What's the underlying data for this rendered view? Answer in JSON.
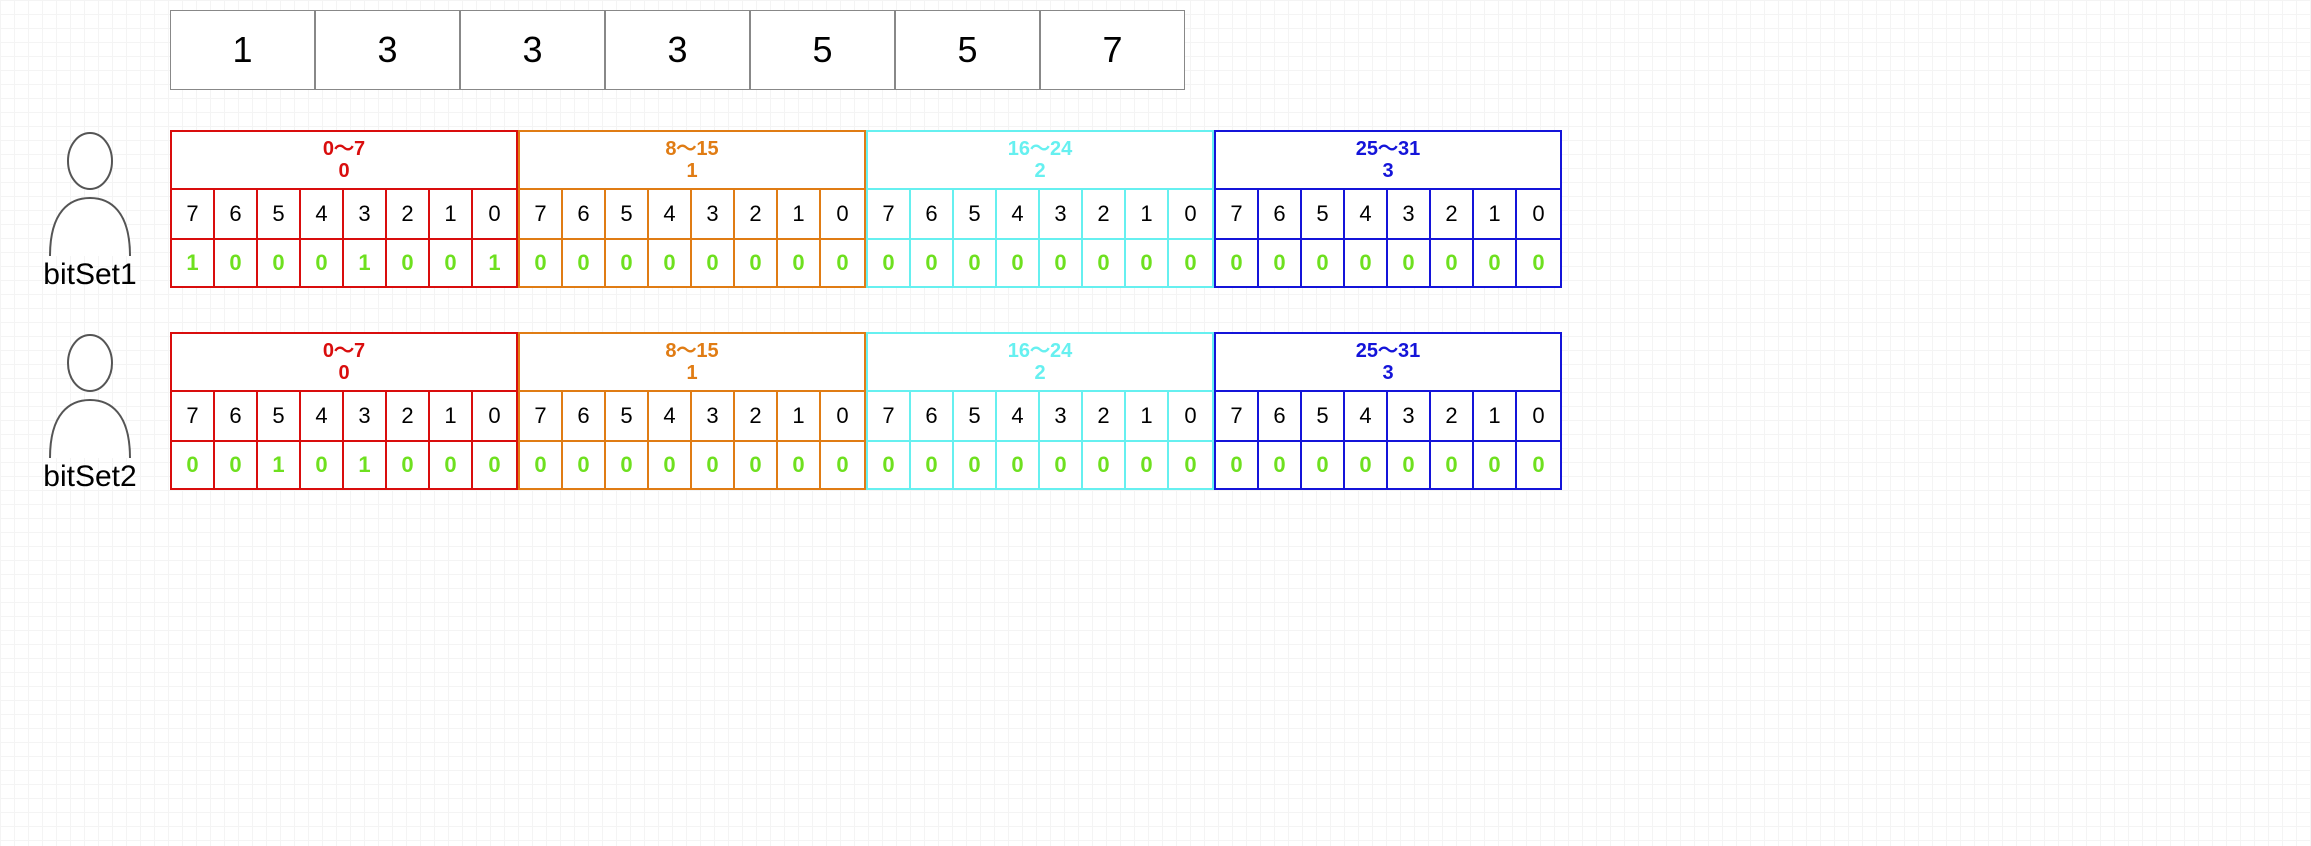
{
  "colors": {
    "value_color": "#6ee01f",
    "index_color": "#000000",
    "cell_bg": "#ffffff",
    "top_border": "#888888"
  },
  "top_numbers": [
    "1",
    "3",
    "3",
    "3",
    "5",
    "5",
    "7"
  ],
  "groups": [
    {
      "range_label": "0～7",
      "index_label": "0",
      "color": "#d90d0d"
    },
    {
      "range_label": "8～15",
      "index_label": "1",
      "color": "#e07c14"
    },
    {
      "range_label": "16～24",
      "index_label": "2",
      "color": "#66f0f0"
    },
    {
      "range_label": "25～31",
      "index_label": "3",
      "color": "#1414d9"
    }
  ],
  "bit_indices": [
    "7",
    "6",
    "5",
    "4",
    "3",
    "2",
    "1",
    "0"
  ],
  "bitsets": [
    {
      "name": "bitSet1",
      "groups": [
        [
          "1",
          "0",
          "0",
          "0",
          "1",
          "0",
          "0",
          "1"
        ],
        [
          "0",
          "0",
          "0",
          "0",
          "0",
          "0",
          "0",
          "0"
        ],
        [
          "0",
          "0",
          "0",
          "0",
          "0",
          "0",
          "0",
          "0"
        ],
        [
          "0",
          "0",
          "0",
          "0",
          "0",
          "0",
          "0",
          "0"
        ]
      ]
    },
    {
      "name": "bitSet2",
      "groups": [
        [
          "0",
          "0",
          "1",
          "0",
          "1",
          "0",
          "0",
          "0"
        ],
        [
          "0",
          "0",
          "0",
          "0",
          "0",
          "0",
          "0",
          "0"
        ],
        [
          "0",
          "0",
          "0",
          "0",
          "0",
          "0",
          "0",
          "0"
        ],
        [
          "0",
          "0",
          "0",
          "0",
          "0",
          "0",
          "0",
          "0"
        ]
      ]
    }
  ]
}
